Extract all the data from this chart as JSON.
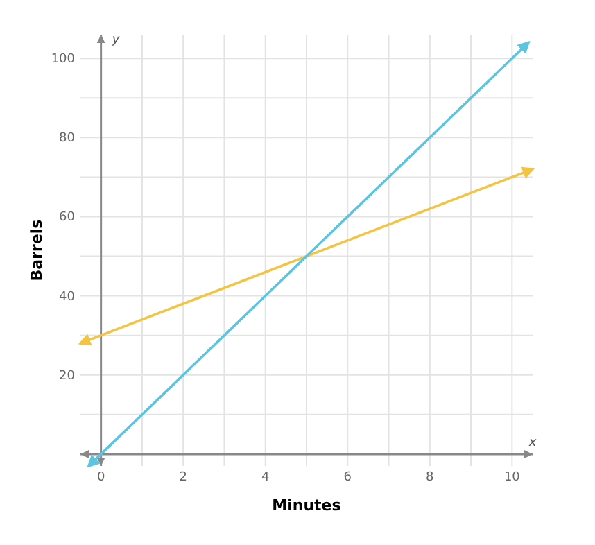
{
  "chart_data": {
    "type": "line",
    "xlabel": "Minutes",
    "ylabel": "Barrels",
    "annotations": [
      "x",
      "y"
    ],
    "xlim": [
      -0.5,
      10.5
    ],
    "ylim": [
      -3,
      106
    ],
    "xticks": [
      0,
      {
        "value": 1,
        "label": null
      },
      2,
      {
        "value": 3,
        "label": null
      },
      4,
      {
        "value": 5,
        "label": null
      },
      6,
      {
        "value": 7,
        "label": null
      },
      8,
      {
        "value": 9,
        "label": null
      },
      10
    ],
    "yticks": [
      {
        "value": 0,
        "label": null
      },
      {
        "value": 10,
        "label": null
      },
      20,
      {
        "value": 30,
        "label": null
      },
      40,
      {
        "value": 50,
        "label": null
      },
      60,
      {
        "value": 70,
        "label": null
      },
      80,
      {
        "value": 90,
        "label": null
      },
      100
    ],
    "grid": true,
    "marker": "none",
    "line_style": "solid",
    "series": [
      {
        "color": "#f5c342",
        "x": [
          -0.5,
          0,
          5,
          10,
          10.5
        ],
        "values": [
          28,
          30,
          50,
          70,
          72
        ]
      },
      {
        "color": "#5bc4e0",
        "x": [
          -0.3,
          0,
          5,
          10,
          10.4
        ],
        "values": [
          -3,
          0,
          50,
          100,
          104
        ]
      }
    ]
  }
}
